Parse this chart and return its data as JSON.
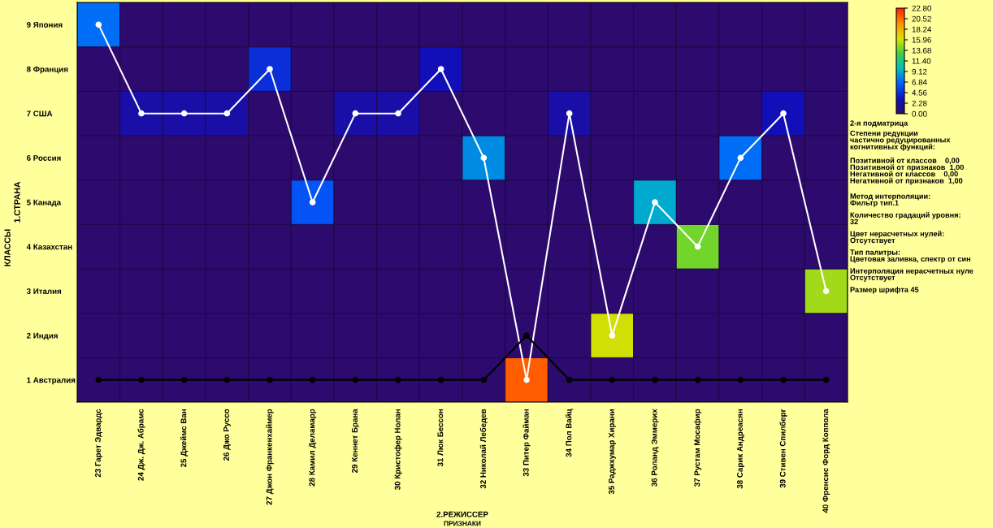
{
  "chart_data": {
    "type": "heatmap",
    "xlabel": "2.РЕЖИССЕР",
    "ylabel": "1.СТРАНА",
    "categories": [
      "23 Гарет Эдвардс",
      "24 Дж. Дж. Абрамс",
      "25 Джеймс Ван",
      "26 Джо Руссо",
      "27 Джон Франкенхаймер",
      "28 Камил Деламарр",
      "29 Кеннет Брана",
      "30 Кристофер Нолан",
      "31 Люк Бессон",
      "32 Николай Лебедев",
      "33 Питер Файман",
      "34 Пол Вайц",
      "35 Раджкумар Хирани",
      "36 Роланд Эммерих",
      "37 Рустам Мосафир",
      "38 Сарик Андреасян",
      "39 Стивен Спилберг",
      "40 Френсис Форд Коппола"
    ],
    "y_categories": [
      "9 Япония",
      "8 Франция",
      "7 США",
      "6 Россия",
      "5 Канада",
      "4 Казахстан",
      "3 Италия",
      "2 Индия",
      "1 Австралия"
    ],
    "cells": [
      [
        7,
        0,
        0,
        0,
        0,
        0,
        0,
        0,
        0,
        0,
        0,
        0,
        0,
        0,
        0,
        0,
        0,
        0
      ],
      [
        0,
        0,
        0,
        0,
        4.5,
        0,
        0,
        0,
        3,
        0,
        0,
        0,
        0,
        0,
        0,
        0,
        0,
        0
      ],
      [
        0,
        2.3,
        2.3,
        2.3,
        0,
        0,
        2.3,
        2.3,
        0,
        0,
        0,
        2.3,
        0,
        0,
        0,
        0,
        3,
        0
      ],
      [
        0,
        0,
        0,
        0,
        0,
        0,
        0,
        0,
        0,
        8,
        0,
        0,
        0,
        0,
        0,
        7,
        0,
        0
      ],
      [
        0,
        0,
        0,
        0,
        0,
        6,
        0,
        0,
        0,
        0,
        0,
        0,
        0,
        9,
        0,
        0,
        0,
        0
      ],
      [
        0,
        0,
        0,
        0,
        0,
        0,
        0,
        0,
        0,
        0,
        0,
        0,
        0,
        0,
        14,
        0,
        0,
        0
      ],
      [
        0,
        0,
        0,
        0,
        0,
        0,
        0,
        0,
        0,
        0,
        0,
        0,
        0,
        0,
        0,
        0,
        0,
        15
      ],
      [
        0,
        0,
        0,
        0,
        0,
        0,
        0,
        0,
        0,
        0,
        0,
        0,
        16,
        0,
        0,
        0,
        0,
        0
      ],
      [
        0,
        0,
        0,
        0,
        0,
        0,
        0,
        0,
        0,
        0,
        21,
        0,
        0,
        0,
        0,
        0,
        0,
        0
      ]
    ],
    "clim": [
      0,
      22.8
    ],
    "cticks": [
      {
        "value": 0,
        "label": "0.00"
      },
      {
        "value": 2.28,
        "label": "2.28"
      },
      {
        "value": 4.56,
        "label": "4.56"
      },
      {
        "value": 6.84,
        "label": "6.84"
      },
      {
        "value": 9.12,
        "label": "9.12"
      },
      {
        "value": 11.4,
        "label": "11.40"
      },
      {
        "value": 13.68,
        "label": "13.68"
      },
      {
        "value": 15.96,
        "label": "15.96"
      },
      {
        "value": 18.24,
        "label": "18.24"
      },
      {
        "value": 20.52,
        "label": "20.52"
      },
      {
        "value": 22.8,
        "label": "22.80"
      }
    ],
    "series": [
      {
        "type": "line",
        "color": "#ffffff",
        "values": [
          0,
          2,
          2,
          2,
          1,
          4,
          2,
          2,
          1,
          3,
          8,
          2,
          7,
          4,
          5,
          3,
          2,
          6
        ]
      },
      {
        "type": "line",
        "color": "#000000",
        "values": [
          8,
          8,
          8,
          8,
          8,
          8,
          8,
          8,
          8,
          8,
          7,
          8,
          8,
          8,
          8,
          8,
          8,
          8
        ]
      }
    ],
    "marker": "circle",
    "annotations": [
      "КЛАССЫ",
      "ПРИЗНАКИ",
      "2-я подматрица",
      "Степени редукции\nчастично редуцированных\nкогнитивных функций:",
      "Позитивной от классов    0,00\nПозитивной от признаков  1,00\nНегативной от классов    0,00\nНегативной от признаков  1,00",
      "Метод интерполяции:\nФильтр тип.1",
      "Количество градаций уровня:\n32",
      "Цвет нерасчетных нулей:\nОтсутствует",
      "Тип палитры:\nЦветовая заливка, спектр от син",
      "Интерполяция нерасчетных нуле\nОтсутствует",
      "Размер шрифта 45"
    ]
  }
}
